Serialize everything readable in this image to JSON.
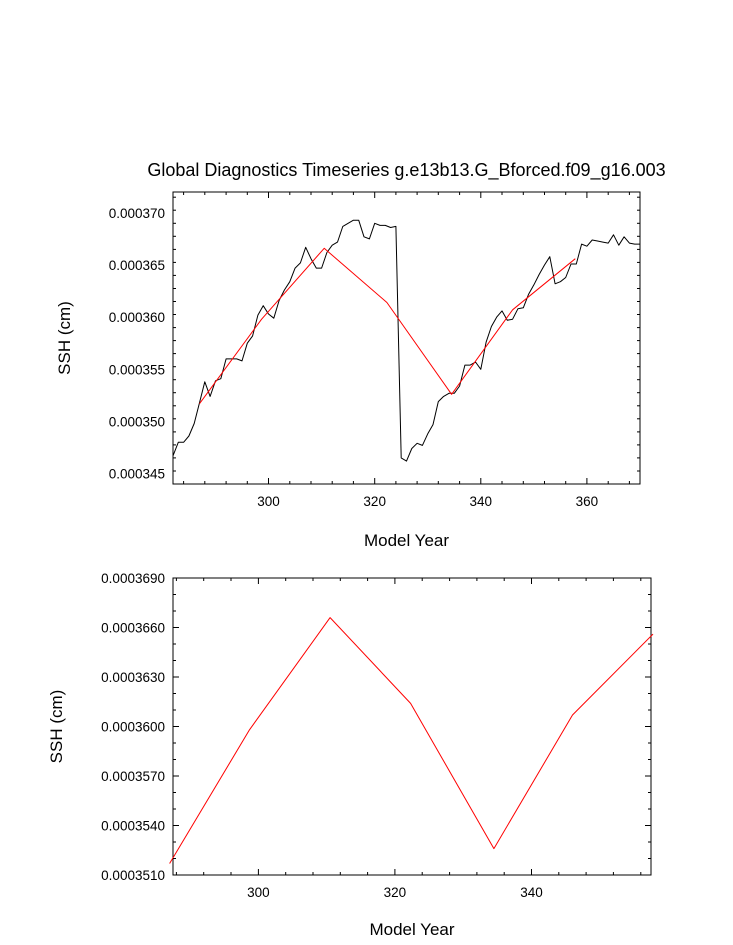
{
  "chart_data": [
    {
      "type": "line",
      "title": "Global Diagnostics Timeseries g.e13b13.G_Bforced.f09_g16.003",
      "xlabel": "Model Year",
      "ylabel": "SSH (cm)",
      "xlim": [
        282,
        370
      ],
      "ylim": [
        0.000344,
        0.000372
      ],
      "xticks": [
        300,
        320,
        340,
        360
      ],
      "yticks": [
        0.000345,
        0.00035,
        0.000355,
        0.00036,
        0.000365,
        0.00037
      ],
      "ytick_labels": [
        "0.000345",
        "0.000350",
        "0.000355",
        "0.000360",
        "0.000365",
        "0.000370"
      ],
      "grid": false,
      "legend": "none",
      "series": [
        {
          "color": "#000000",
          "x": [
            282,
            283,
            284,
            285,
            286,
            287,
            288,
            289,
            290,
            291,
            292,
            293,
            294,
            295,
            296,
            297,
            298,
            299,
            300,
            301,
            302,
            303,
            304,
            305,
            306,
            307,
            308,
            309,
            310,
            311,
            312,
            313,
            314,
            315,
            316,
            317,
            318,
            319,
            320,
            321,
            322,
            323,
            324,
            325,
            326,
            327,
            328,
            329,
            330,
            331,
            332,
            333,
            334,
            335,
            336,
            337,
            338,
            339,
            340,
            341,
            342,
            343,
            344,
            345,
            346,
            347,
            348,
            349,
            350,
            351,
            352,
            353,
            354,
            355,
            356,
            357,
            358,
            359,
            360,
            361,
            362,
            363,
            364,
            365,
            366,
            367,
            368,
            369,
            370
          ],
          "y": [
            0.0003467,
            0.000348,
            0.000348,
            0.0003486,
            0.0003498,
            0.0003518,
            0.0003538,
            0.0003524,
            0.0003539,
            0.0003541,
            0.000356,
            0.000356,
            0.000356,
            0.0003558,
            0.0003575,
            0.0003582,
            0.0003602,
            0.0003611,
            0.0003603,
            0.0003599,
            0.0003616,
            0.0003626,
            0.0003634,
            0.0003647,
            0.0003652,
            0.0003667,
            0.0003656,
            0.0003647,
            0.0003647,
            0.0003662,
            0.0003669,
            0.0003672,
            0.0003687,
            0.000369,
            0.0003693,
            0.0003693,
            0.0003677,
            0.0003675,
            0.000369,
            0.0003688,
            0.0003688,
            0.0003686,
            0.0003687,
            0.0003465,
            0.0003462,
            0.0003474,
            0.0003479,
            0.0003477,
            0.0003488,
            0.0003497,
            0.0003519,
            0.0003524,
            0.0003527,
            0.0003527,
            0.0003534,
            0.0003554,
            0.0003554,
            0.0003557,
            0.000355,
            0.0003576,
            0.0003591,
            0.00036,
            0.0003606,
            0.0003597,
            0.0003598,
            0.0003608,
            0.0003609,
            0.0003622,
            0.0003631,
            0.0003641,
            0.000365,
            0.0003658,
            0.0003632,
            0.0003634,
            0.0003638,
            0.0003651,
            0.0003651,
            0.000367,
            0.0003668,
            0.0003674,
            0.0003673,
            0.0003672,
            0.0003671,
            0.0003679,
            0.0003669,
            0.0003677,
            0.0003671,
            0.000367,
            0.000367
          ]
        },
        {
          "color": "#ff0000",
          "x": [
            287,
            298.7,
            310.5,
            322.3,
            334.5,
            346,
            357.8
          ],
          "y": [
            0.0003517,
            0.0003598,
            0.0003666,
            0.0003614,
            0.0003526,
            0.0003607,
            0.0003656
          ]
        }
      ]
    },
    {
      "type": "line",
      "title": "",
      "xlabel": "Model Year",
      "ylabel": "SSH (cm)",
      "xlim": [
        287.5,
        357.5
      ],
      "ylim": [
        0.000351,
        0.000369
      ],
      "xticks": [
        300,
        320,
        340
      ],
      "yticks": [
        0.000351,
        0.000354,
        0.000357,
        0.00036,
        0.000363,
        0.000366,
        0.000369
      ],
      "ytick_labels": [
        "0.0003510",
        "0.0003540",
        "0.0003570",
        "0.0003600",
        "0.0003630",
        "0.0003660",
        "0.0003690"
      ],
      "grid": false,
      "legend": "none",
      "series": [
        {
          "color": "#ff0000",
          "x": [
            287,
            298.7,
            310.5,
            322.3,
            334.5,
            346,
            357.8
          ],
          "y": [
            0.0003517,
            0.0003598,
            0.0003666,
            0.0003614,
            0.0003526,
            0.0003607,
            0.0003656
          ]
        }
      ]
    }
  ]
}
